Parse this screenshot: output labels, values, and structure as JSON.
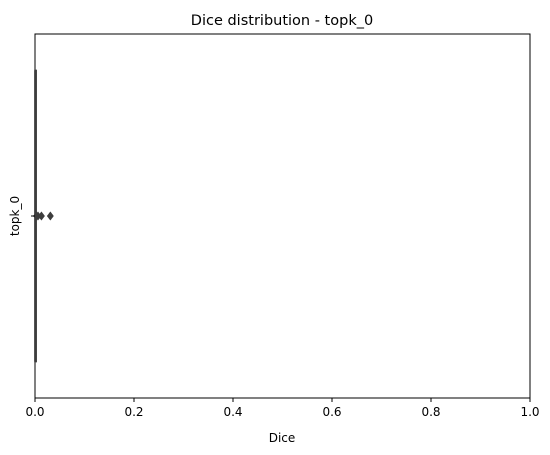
{
  "chart_data": {
    "type": "boxplot",
    "orientation": "horizontal",
    "title": "Dice distribution - topk_0",
    "xlabel": "Dice",
    "ylabel": "",
    "xlim": [
      0.0,
      1.0
    ],
    "x_ticks": [
      "0.0",
      "0.2",
      "0.4",
      "0.6",
      "0.8",
      "1.0"
    ],
    "categories": [
      "topk_0"
    ],
    "series": [
      {
        "category": "topk_0",
        "whisker_low": 0.0,
        "q1": 0.0,
        "median": 0.0,
        "q3": 0.0,
        "whisker_high": 0.0,
        "outliers": [
          0.003,
          0.006,
          0.013,
          0.031
        ],
        "box_color": "#4c72b0",
        "outlier_color": "#3d3d3d"
      }
    ],
    "grid": false,
    "legend": "none"
  }
}
